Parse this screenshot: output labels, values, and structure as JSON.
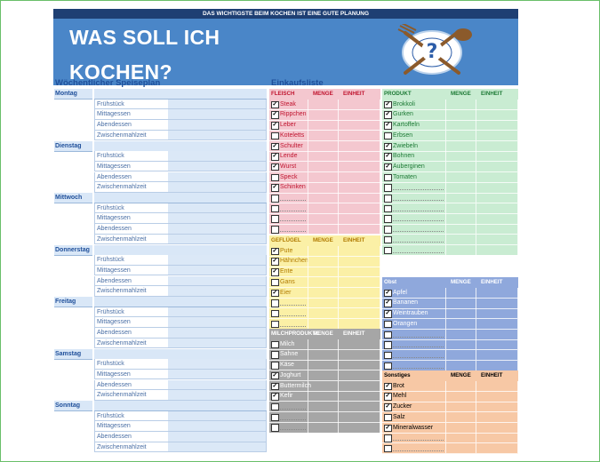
{
  "header": {
    "topbar": "DAS WICHTIGSTE BEIM KOCHEN IST EINE GUTE PLANUNG",
    "title_line1": "WAS SOLL ICH",
    "title_line2": "KOCHEN?"
  },
  "plan": {
    "heading": "Wöchentlicher Speiseplan",
    "meals": [
      "Frühstück",
      "Mittagessen",
      "Abendessen",
      "Zwischenmahlzeit"
    ],
    "days": [
      "Montag",
      "Dienstag",
      "Mittwoch",
      "Donnerstag",
      "Freitag",
      "Samstag",
      "Sonntag"
    ]
  },
  "shopping": {
    "heading": "Einkaufsliste",
    "col_menge": "MENGE",
    "col_einheit": "EINHEIT",
    "categories": [
      {
        "key": "fleisch",
        "title": "FLEISCH",
        "color": "#f4c7cf",
        "text_color": "#c0142f",
        "items": [
          [
            "Steak",
            true
          ],
          [
            "Rippchen",
            true
          ],
          [
            "Leber",
            true
          ],
          [
            "Koteletts",
            false
          ],
          [
            "Schulter",
            true
          ],
          [
            "Lende",
            true
          ],
          [
            "Wurst",
            true
          ],
          [
            "Speck",
            false
          ],
          [
            "Schinken",
            true
          ],
          [
            "",
            false
          ],
          [
            "",
            false
          ],
          [
            "",
            false
          ],
          [
            "",
            false
          ]
        ]
      },
      {
        "key": "gefluegel",
        "title": "GEFLÜGEL",
        "color": "#fbf0a6",
        "text_color": "#b07a00",
        "items": [
          [
            "Pute",
            true
          ],
          [
            "Hähnchen",
            true
          ],
          [
            "Ente",
            true
          ],
          [
            "Gans",
            false
          ],
          [
            "Eier",
            true
          ],
          [
            "",
            false
          ],
          [
            "",
            false
          ],
          [
            "",
            false
          ]
        ]
      },
      {
        "key": "milch",
        "title": "MILCHPRODUKTE",
        "color": "#a6a6a6",
        "text_color": "#ffffff",
        "items": [
          [
            "Milch",
            false
          ],
          [
            "Sahne",
            false
          ],
          [
            "Käse",
            false
          ],
          [
            "Joghurt",
            true
          ],
          [
            "Buttermilch",
            true
          ],
          [
            "Kefir",
            true
          ],
          [
            "",
            false
          ],
          [
            "",
            false
          ],
          [
            "",
            false
          ]
        ]
      },
      {
        "key": "produkt",
        "title": "PRODUKT",
        "color": "#c9ecd2",
        "text_color": "#1d7a35",
        "items": [
          [
            "Brokkoli",
            true
          ],
          [
            "Gurken",
            true
          ],
          [
            "Kartoffeln",
            true
          ],
          [
            "Erbsen",
            false
          ],
          [
            "Zwiebeln",
            true
          ],
          [
            "Bohnen",
            true
          ],
          [
            "Auberginen",
            true
          ],
          [
            "Tomaten",
            false
          ],
          [
            "",
            false
          ],
          [
            "",
            false
          ],
          [
            "",
            false
          ],
          [
            "",
            false
          ],
          [
            "",
            false
          ],
          [
            "",
            false
          ],
          [
            "",
            false
          ]
        ]
      },
      {
        "key": "obst",
        "title": "Obst",
        "color": "#8fa8dc",
        "text_color": "#ffffff",
        "items": [
          [
            "Apfel",
            true
          ],
          [
            "Bananen",
            true
          ],
          [
            "Weintrauben",
            true
          ],
          [
            "Orangen",
            false
          ],
          [
            "",
            false
          ],
          [
            "",
            false
          ],
          [
            "",
            false
          ],
          [
            "",
            false
          ]
        ]
      },
      {
        "key": "sonstiges",
        "title": "Sonstiges",
        "color": "#f7c8a5",
        "text_color": "#000000",
        "items": [
          [
            "Brot",
            true
          ],
          [
            "Mehl",
            true
          ],
          [
            "Zucker",
            true
          ],
          [
            "Salz",
            false
          ],
          [
            "Mineralwasser",
            true
          ],
          [
            "",
            false
          ],
          [
            "",
            false
          ]
        ]
      }
    ]
  }
}
